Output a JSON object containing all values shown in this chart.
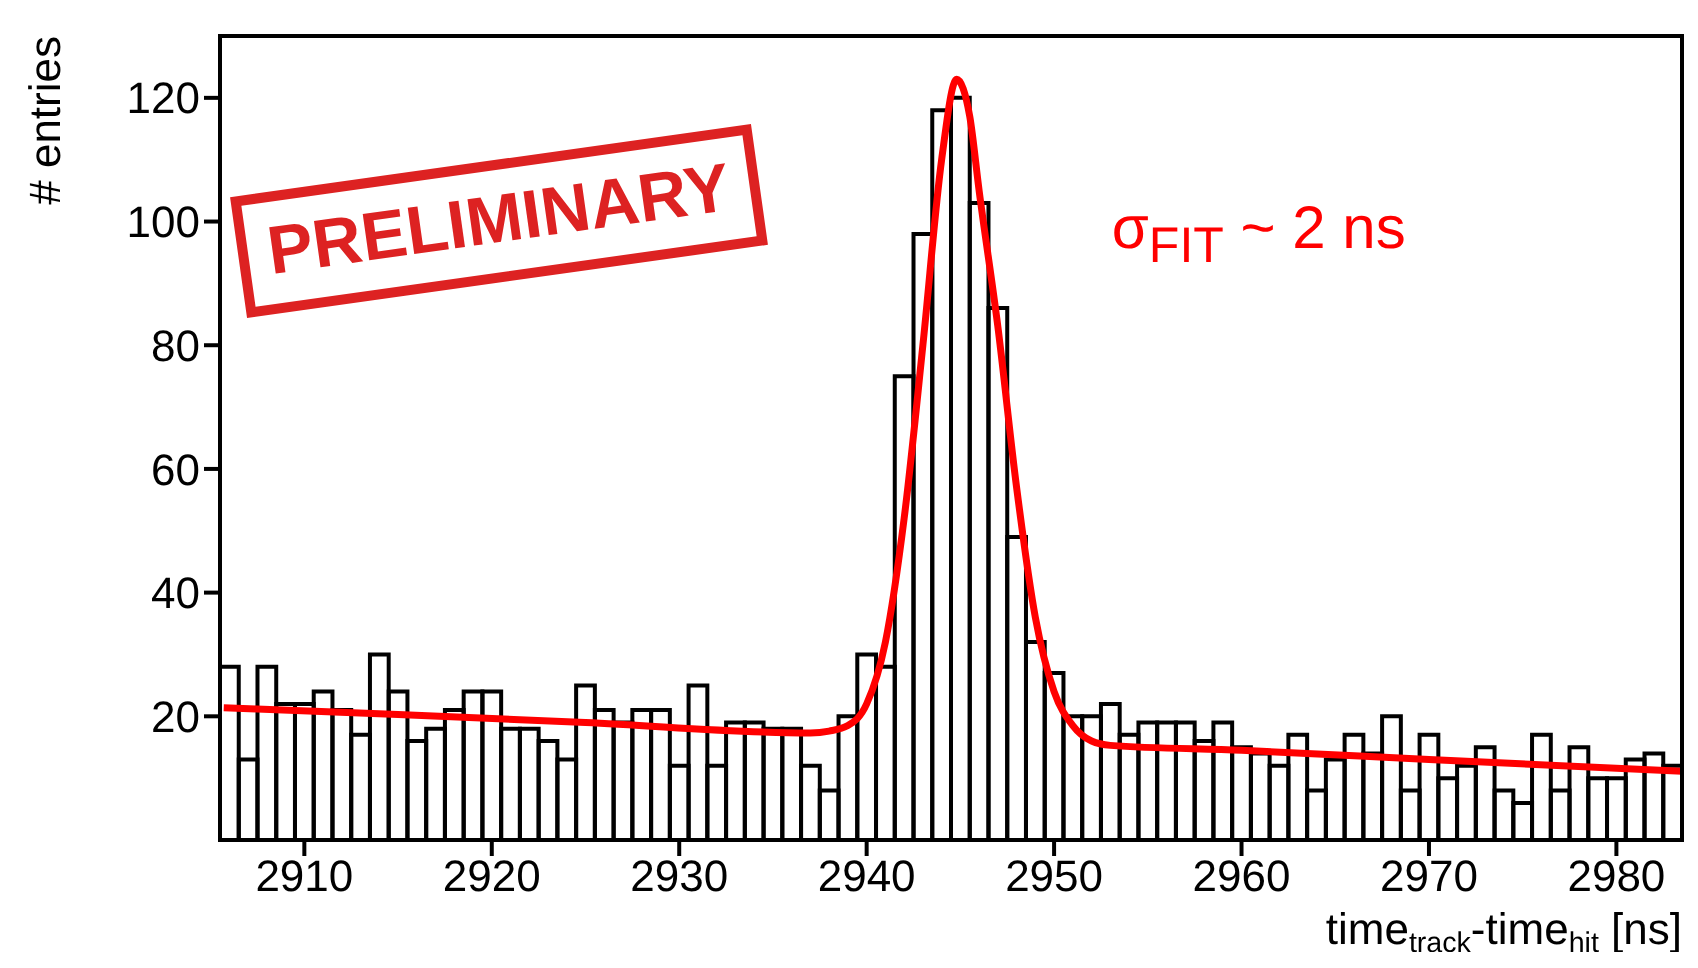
{
  "chart_data": {
    "type": "histogram",
    "xlabel": "time$_{track}$-time$_{hit}$ [ns]",
    "ylabel": "# entries",
    "annotations": [
      "σ$_{FIT}$ ~ 2 ns",
      "PRELIMINARY"
    ],
    "xlim": [
      2905.5,
      2983.5
    ],
    "xticks": [
      2910,
      2920,
      2930,
      2940,
      2950,
      2960,
      2970,
      2980
    ],
    "ylim": [
      0,
      130
    ],
    "yticks": [
      20,
      40,
      60,
      80,
      100,
      120
    ],
    "bins": [
      2905.5,
      2906.5,
      2907.5,
      2908.5,
      2909.5,
      2910.5,
      2911.5,
      2912.5,
      2913.5,
      2914.5,
      2915.5,
      2916.5,
      2917.5,
      2918.5,
      2919.5,
      2920.5,
      2921.5,
      2922.5,
      2923.5,
      2924.5,
      2925.5,
      2926.5,
      2927.5,
      2928.5,
      2929.5,
      2930.5,
      2931.5,
      2932.5,
      2933.5,
      2934.5,
      2935.5,
      2936.5,
      2937.5,
      2938.5,
      2939.5,
      2940.5,
      2941.5,
      2942.5,
      2943.5,
      2944.5,
      2945.5,
      2946.5,
      2947.5,
      2948.5,
      2949.5,
      2950.5,
      2951.5,
      2952.5,
      2953.5,
      2954.5,
      2955.5,
      2956.5,
      2957.5,
      2958.5,
      2959.5,
      2960.5,
      2961.5,
      2962.5,
      2963.5,
      2964.5,
      2965.5,
      2966.5,
      2967.5,
      2968.5,
      2969.5,
      2970.5,
      2971.5,
      2972.5,
      2973.5,
      2974.5,
      2975.5,
      2976.5,
      2977.5,
      2978.5,
      2979.5,
      2980.5,
      2981.5,
      2982.5,
      2983.5
    ],
    "series": [
      {
        "color": "#000000",
        "values": [
          28,
          13,
          28,
          22,
          22,
          24,
          21,
          17,
          30,
          24,
          16,
          18,
          21,
          24,
          24,
          18,
          18,
          16,
          13,
          25,
          21,
          19,
          21,
          21,
          12,
          25,
          12,
          19,
          19,
          18,
          18,
          12,
          8,
          20,
          30,
          28,
          75,
          98,
          118,
          120,
          103,
          86,
          49,
          32,
          27,
          20,
          20,
          22,
          17,
          19,
          19,
          19,
          16,
          19,
          15,
          14,
          12,
          17,
          8,
          13,
          17,
          14,
          20,
          8,
          17,
          10,
          12,
          15,
          8,
          6,
          17,
          8,
          15,
          10,
          10,
          13,
          14,
          12
        ]
      },
      {
        "type": "line",
        "color": "#ff0000",
        "x": [
          2905.7,
          2915,
          2925,
          2937,
          2938,
          2939,
          2940,
          2941,
          2942,
          2943,
          2944,
          2944.8,
          2945.5,
          2946,
          2947,
          2948,
          2949,
          2950,
          2951,
          2952,
          2953,
          2960,
          2970,
          2983.5
        ],
        "values": [
          21.4,
          20.3,
          19,
          17.3,
          17.6,
          18.5,
          22,
          32,
          52,
          80,
          110,
          123,
          117,
          105,
          83,
          57,
          36,
          24,
          18.5,
          16,
          15.3,
          14.5,
          13,
          11.1
        ]
      }
    ]
  }
}
